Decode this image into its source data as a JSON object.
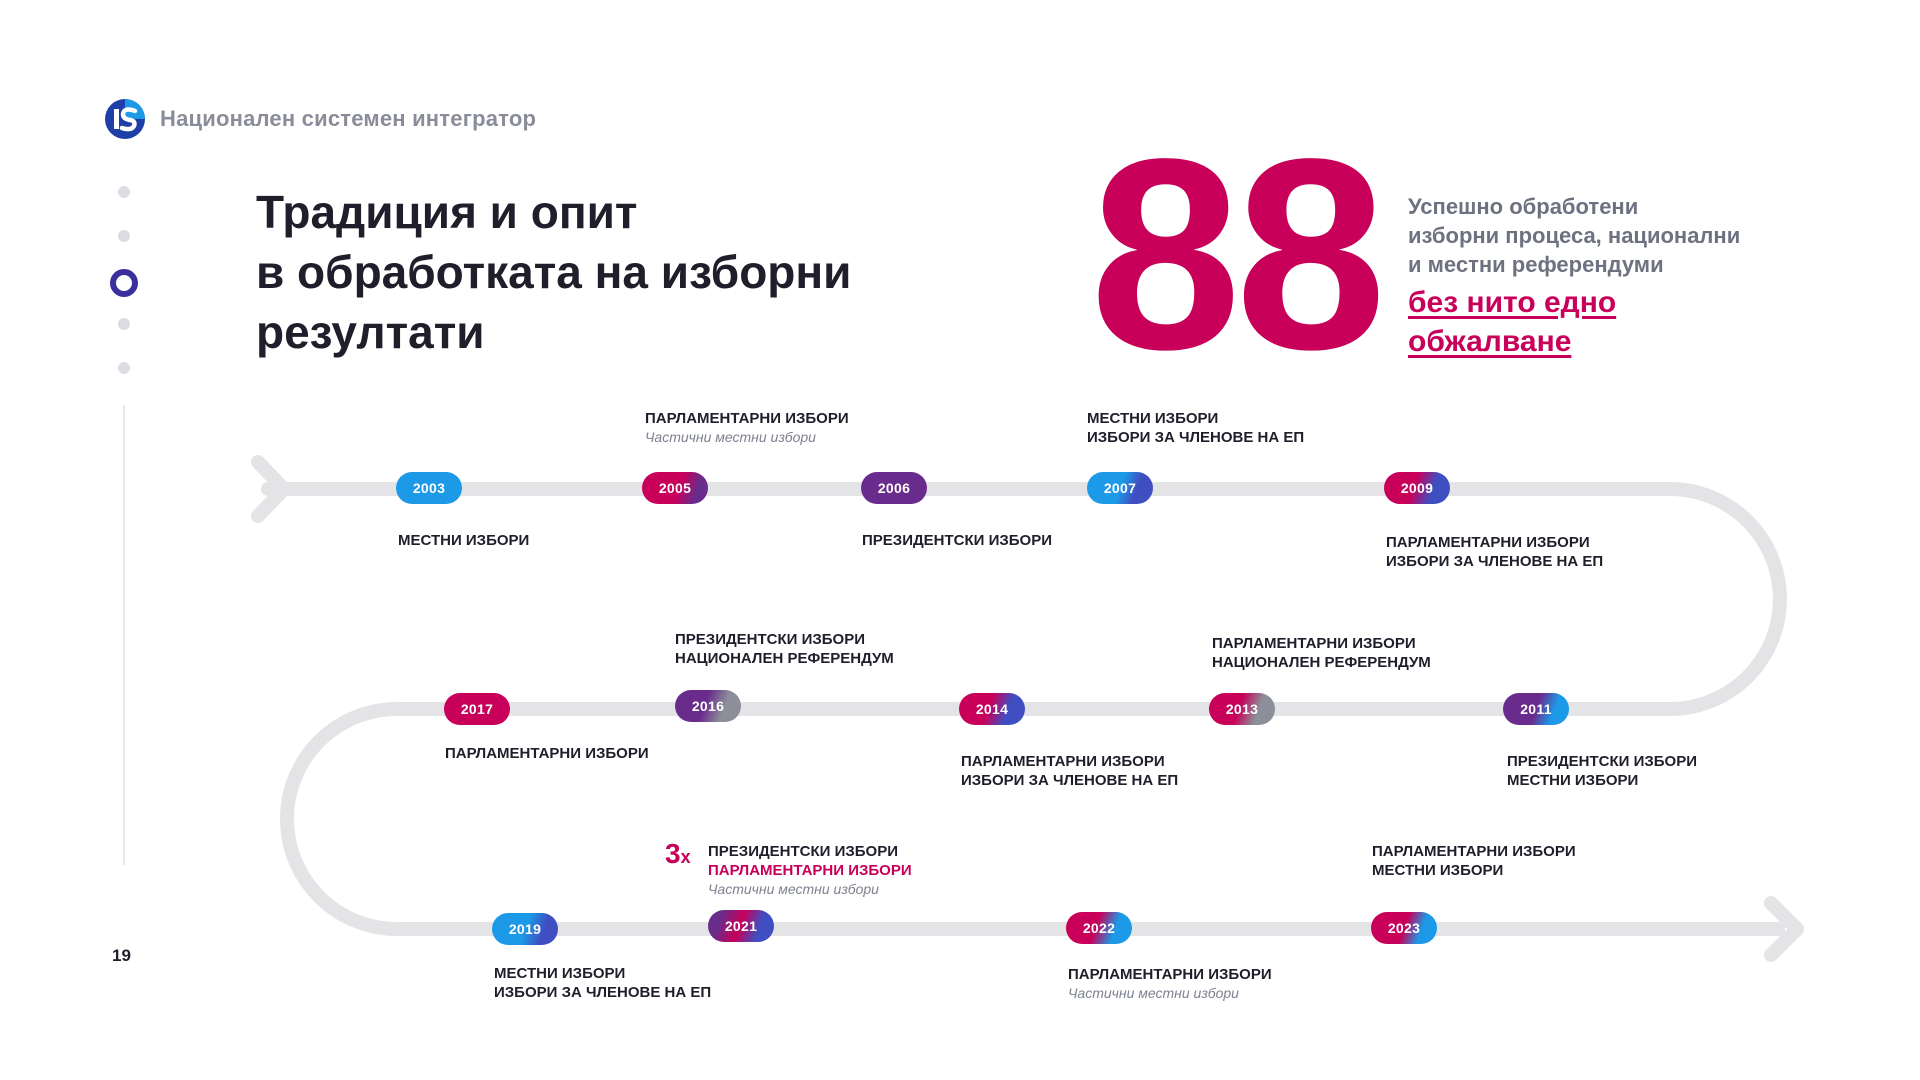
{
  "header": {
    "brand": "Национален системен интегратор"
  },
  "page_number": "19",
  "title": {
    "lines": [
      "Традиция и опит",
      "в обработката на изборни",
      "резултати"
    ]
  },
  "stat": {
    "number": "88",
    "text_lines": [
      "Успешно обработени",
      "изборни процеса, национални",
      "и местни референдуми"
    ],
    "link_lines": [
      "без нито едно",
      "обжалване"
    ]
  },
  "colors": {
    "magenta": "#c8005a",
    "blue": "#1c9ae8",
    "indigo": "#3f4fc2",
    "purple": "#6a2c8c",
    "gray": "#8c8f99",
    "track": "#e4e4e7"
  },
  "timeline": {
    "events": [
      {
        "year": "2003",
        "lines": [
          "МЕСТНИ ИЗБОРИ"
        ]
      },
      {
        "year": "2005",
        "lines": [
          "ПАРЛАМЕНТАРНИ ИЗБОРИ"
        ],
        "sub": "Частични местни избори"
      },
      {
        "year": "2006",
        "lines": [
          "ПРЕЗИДЕНТСКИ ИЗБОРИ"
        ]
      },
      {
        "year": "2007",
        "lines": [
          "МЕСТНИ ИЗБОРИ",
          "ИЗБОРИ ЗА ЧЛЕНОВЕ НА ЕП"
        ]
      },
      {
        "year": "2009",
        "lines": [
          "ПАРЛАМЕНТАРНИ ИЗБОРИ",
          "ИЗБОРИ ЗА ЧЛЕНОВЕ НА ЕП"
        ]
      },
      {
        "year": "2011",
        "lines": [
          "ПРЕЗИДЕНТСКИ ИЗБОРИ",
          "МЕСТНИ ИЗБОРИ"
        ]
      },
      {
        "year": "2013",
        "lines": [
          "ПАРЛАМЕНТАРНИ ИЗБОРИ",
          "НАЦИОНАЛЕН РЕФЕРЕНДУМ"
        ]
      },
      {
        "year": "2014",
        "lines": [
          "ПАРЛАМЕНТАРНИ ИЗБОРИ",
          "ИЗБОРИ ЗА ЧЛЕНОВЕ НА ЕП"
        ]
      },
      {
        "year": "2016",
        "lines": [
          "ПРЕЗИДЕНТСКИ ИЗБОРИ",
          "НАЦИОНАЛЕН РЕФЕРЕНДУМ"
        ]
      },
      {
        "year": "2017",
        "lines": [
          "ПАРЛАМЕНТАРНИ ИЗБОРИ"
        ]
      },
      {
        "year": "2019",
        "lines": [
          "МЕСТНИ ИЗБОРИ",
          "ИЗБОРИ ЗА ЧЛЕНОВЕ НА ЕП"
        ]
      },
      {
        "year": "2021",
        "multiplier": "3",
        "multiplier_suffix": "x",
        "lines": [
          "ПРЕЗИДЕНТСКИ ИЗБОРИ"
        ],
        "highlight": "ПАРЛАМЕНТАРНИ ИЗБОРИ",
        "sub": "Частични местни избори"
      },
      {
        "year": "2022",
        "lines": [
          "ПАРЛАМЕНТАРНИ ИЗБОРИ"
        ],
        "sub": "Частични местни избори"
      },
      {
        "year": "2023",
        "lines": [
          "ПАРЛАМЕНТАРНИ ИЗБОРИ",
          "МЕСТНИ ИЗБОРИ"
        ]
      }
    ]
  }
}
